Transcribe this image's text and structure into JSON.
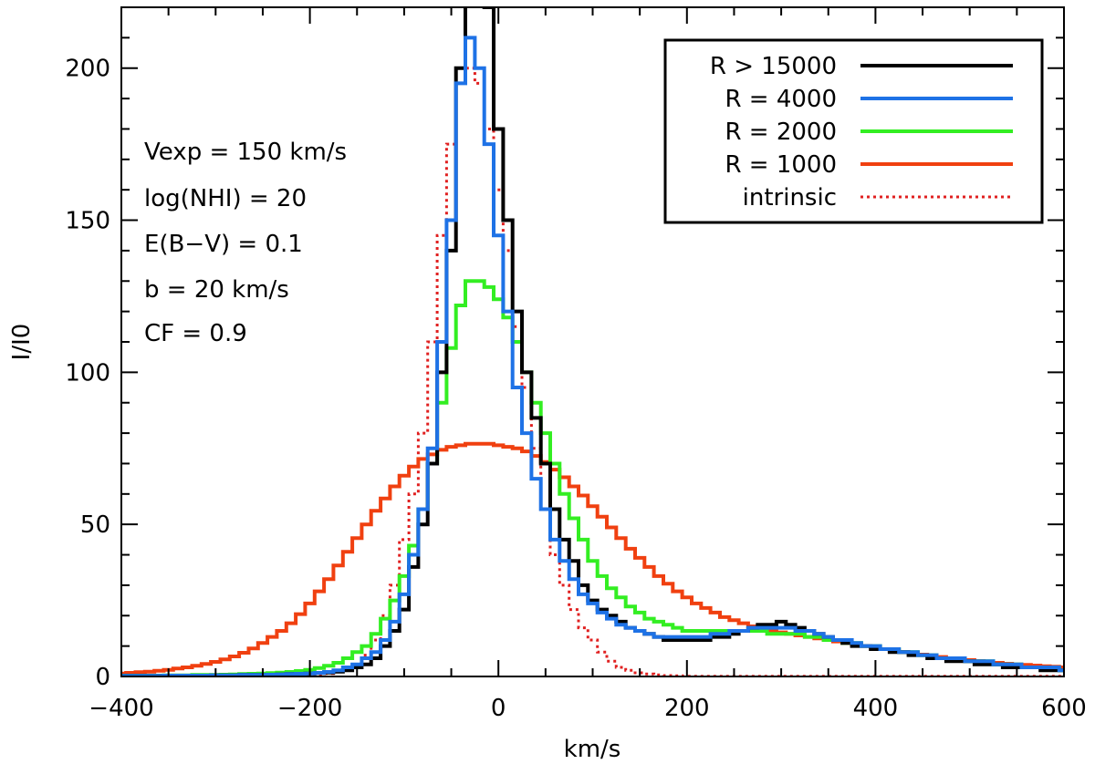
{
  "chart_data": {
    "type": "line",
    "title": "",
    "xlabel": "km/s",
    "ylabel": "I/I0",
    "xlim": [
      -400,
      600
    ],
    "ylim": [
      0,
      220
    ],
    "x_ticks": [
      -400,
      -200,
      0,
      200,
      400,
      600
    ],
    "x_tick_labels": [
      "−400",
      "−200",
      "0",
      "200",
      "400",
      "600"
    ],
    "y_ticks": [
      0,
      50,
      100,
      150,
      200
    ],
    "y_tick_labels": [
      "0",
      "50",
      "100",
      "150",
      "200"
    ],
    "grid": false,
    "legend_position": "top-right",
    "x": [
      -400,
      -390,
      -380,
      -370,
      -360,
      -350,
      -340,
      -330,
      -320,
      -310,
      -300,
      -290,
      -280,
      -270,
      -260,
      -250,
      -240,
      -230,
      -220,
      -210,
      -200,
      -190,
      -180,
      -170,
      -160,
      -150,
      -140,
      -130,
      -120,
      -110,
      -100,
      -90,
      -80,
      -70,
      -60,
      -50,
      -40,
      -30,
      -20,
      -10,
      0,
      10,
      20,
      30,
      40,
      50,
      60,
      70,
      80,
      90,
      100,
      110,
      120,
      130,
      140,
      150,
      160,
      170,
      180,
      190,
      200,
      210,
      220,
      230,
      240,
      250,
      260,
      270,
      280,
      290,
      300,
      310,
      320,
      330,
      340,
      350,
      360,
      370,
      380,
      390,
      400,
      410,
      420,
      430,
      440,
      450,
      460,
      470,
      480,
      490,
      500,
      510,
      520,
      530,
      540,
      550,
      560,
      570,
      580,
      590,
      600
    ],
    "series": [
      {
        "name": "R > 15000",
        "color": "#000000",
        "style": "solid",
        "values": [
          0.2,
          0.2,
          0.2,
          0.2,
          0.2,
          0.3,
          0.3,
          0.3,
          0.3,
          0.3,
          0.4,
          0.4,
          0.4,
          0.5,
          0.5,
          0.5,
          0.6,
          0.7,
          0.8,
          0.9,
          1.0,
          1.1,
          1.3,
          1.6,
          2,
          3,
          4,
          6,
          10,
          15,
          22,
          36,
          50,
          70,
          100,
          140,
          200,
          240,
          250,
          220,
          180,
          150,
          120,
          100,
          85,
          70,
          55,
          45,
          38,
          30,
          25,
          22,
          20,
          18,
          16,
          15,
          14,
          13,
          12,
          12,
          12,
          12,
          12,
          13,
          13,
          14,
          15,
          16,
          17,
          17,
          18,
          17,
          16,
          15,
          14,
          13,
          12,
          11,
          10,
          10,
          9,
          9,
          8,
          8,
          7,
          7,
          6,
          6,
          5,
          5,
          5,
          4,
          4,
          4,
          3,
          3,
          3,
          3,
          2,
          2,
          2
        ]
      },
      {
        "name": "R = 4000",
        "color": "#1e72e6",
        "style": "solid",
        "values": [
          0.2,
          0.2,
          0.2,
          0.2,
          0.2,
          0.3,
          0.3,
          0.3,
          0.3,
          0.3,
          0.4,
          0.4,
          0.4,
          0.5,
          0.5,
          0.5,
          0.6,
          0.7,
          0.8,
          0.9,
          1.0,
          1.2,
          1.5,
          2,
          3,
          4,
          6,
          8,
          12,
          18,
          27,
          40,
          55,
          75,
          110,
          150,
          195,
          210,
          200,
          175,
          145,
          120,
          95,
          80,
          65,
          55,
          45,
          38,
          32,
          27,
          24,
          21,
          19,
          17,
          16,
          15,
          14,
          13,
          13,
          13,
          13,
          13,
          13,
          14,
          14,
          15,
          15,
          16,
          16,
          16,
          16,
          16,
          15,
          15,
          14,
          13,
          12,
          12,
          11,
          10,
          10,
          9,
          9,
          8,
          8,
          7,
          7,
          6,
          6,
          6,
          5,
          5,
          5,
          4,
          4,
          4,
          3,
          3,
          3,
          3,
          2
        ]
      },
      {
        "name": "R = 2000",
        "color": "#33ee22",
        "style": "solid",
        "values": [
          0.3,
          0.3,
          0.3,
          0.3,
          0.3,
          0.4,
          0.4,
          0.4,
          0.5,
          0.5,
          0.5,
          0.6,
          0.7,
          0.8,
          0.9,
          1.0,
          1.1,
          1.3,
          1.5,
          1.8,
          2.2,
          2.8,
          3.5,
          4.5,
          6,
          8,
          10,
          14,
          19,
          25,
          33,
          43,
          55,
          70,
          90,
          108,
          122,
          130,
          130,
          128,
          124,
          118,
          110,
          100,
          90,
          80,
          70,
          60,
          52,
          45,
          38,
          33,
          29,
          26,
          23,
          21,
          19,
          18,
          17,
          16,
          15,
          15,
          15,
          15,
          15,
          15,
          15,
          15,
          15,
          14,
          14,
          14,
          14,
          13,
          13,
          12,
          12,
          11,
          11,
          10,
          10,
          9,
          9,
          8,
          8,
          7,
          7,
          6,
          6,
          6,
          5,
          5,
          5,
          4,
          4,
          4,
          3,
          3,
          3,
          3,
          2
        ]
      },
      {
        "name": "R = 1000",
        "color": "#f04010",
        "style": "solid",
        "values": [
          1.0,
          1.2,
          1.4,
          1.6,
          1.9,
          2.2,
          2.6,
          3.0,
          3.5,
          4.1,
          4.8,
          5.6,
          6.6,
          7.8,
          9.2,
          11,
          13,
          15,
          17.5,
          20.5,
          24,
          28,
          32,
          36.5,
          41,
          45.5,
          50,
          54.5,
          58.5,
          62.5,
          66,
          69,
          71.5,
          73,
          74.5,
          75.5,
          76,
          76.5,
          76.5,
          76.5,
          76,
          75.5,
          75,
          74,
          72.5,
          70.5,
          68,
          65.5,
          62.5,
          59.5,
          56,
          52.5,
          49,
          45.5,
          42,
          39,
          36,
          33,
          30.5,
          28,
          26,
          24,
          22.5,
          21,
          19.5,
          18.5,
          17.5,
          16.5,
          15.5,
          15,
          14.5,
          14,
          13.5,
          13,
          12.5,
          12,
          11.5,
          11,
          10.5,
          10,
          9.5,
          9,
          8.5,
          8,
          7.6,
          7.2,
          6.8,
          6.4,
          6,
          5.7,
          5.4,
          5.1,
          4.8,
          4.5,
          4.2,
          4,
          3.8,
          3.6,
          3.4,
          3.2,
          3
        ]
      },
      {
        "name": "intrinsic",
        "color": "#e02020",
        "style": "dotted",
        "values": [
          0.1,
          0.1,
          0.1,
          0.1,
          0.1,
          0.1,
          0.1,
          0.1,
          0.1,
          0.1,
          0.1,
          0.1,
          0.1,
          0.1,
          0.2,
          0.2,
          0.2,
          0.3,
          0.3,
          0.4,
          0.5,
          0.7,
          1,
          1.5,
          2.5,
          4,
          7,
          12,
          20,
          30,
          45,
          60,
          80,
          110,
          145,
          175,
          195,
          200,
          195,
          180,
          160,
          140,
          115,
          95,
          75,
          55,
          40,
          30,
          22,
          16,
          12,
          8,
          5,
          3,
          2,
          1.2,
          0.8,
          0.5,
          0.3,
          0.2,
          0.1,
          0.1,
          0.1,
          0.1,
          0.1,
          0.1,
          0.1,
          0.1,
          0.1,
          0.1,
          0.1,
          0.1,
          0.1,
          0.1,
          0.1,
          0.1,
          0.1,
          0.1,
          0.1,
          0.1,
          0.1,
          0.1,
          0.1,
          0.1,
          0.1,
          0.1,
          0.1,
          0.1,
          0.1,
          0.1,
          0.1,
          0.1,
          0.1,
          0.1,
          0.1,
          0.1,
          0.1,
          0.1,
          0.1,
          0.1,
          0.1
        ]
      }
    ],
    "annotations": [
      "Vexp = 150 km/s",
      "log(NHI) = 20",
      "E(B−V) = 0.1",
      "b = 20 km/s",
      "CF = 0.9"
    ]
  }
}
